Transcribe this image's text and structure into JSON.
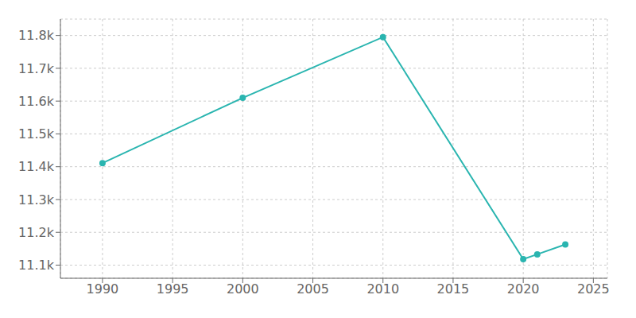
{
  "chart_data": {
    "type": "line",
    "x": [
      1990,
      2000,
      2010,
      2020,
      2021,
      2023
    ],
    "values": [
      11411,
      11610,
      11795,
      11118,
      11133,
      11163
    ],
    "color": "#2ab5b0",
    "marker": "circle",
    "xlim": [
      1987,
      2026
    ],
    "ylim": [
      11060,
      11850
    ],
    "xticks": [
      1990,
      1995,
      2000,
      2005,
      2010,
      2015,
      2020,
      2025
    ],
    "yticks": [
      {
        "value": 11100,
        "label": "11.1k"
      },
      {
        "value": 11200,
        "label": "11.2k"
      },
      {
        "value": 11300,
        "label": "11.3k"
      },
      {
        "value": 11400,
        "label": "11.4k"
      },
      {
        "value": 11500,
        "label": "11.5k"
      },
      {
        "value": 11600,
        "label": "11.6k"
      },
      {
        "value": 11700,
        "label": "11.7k"
      },
      {
        "value": 11800,
        "label": "11.8k"
      }
    ],
    "grid": true
  }
}
